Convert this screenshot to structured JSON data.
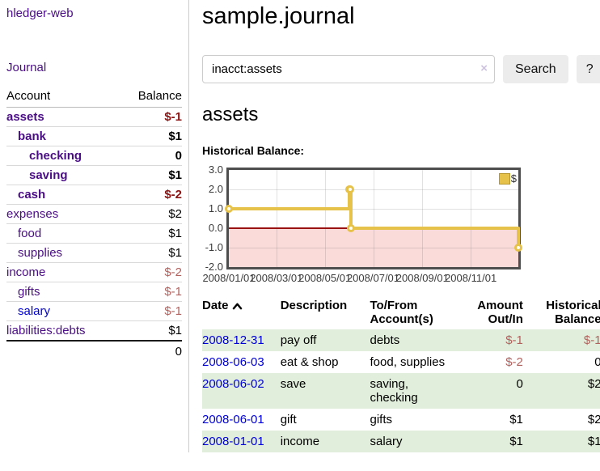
{
  "sidebar": {
    "brand": "hledger-web",
    "journal_link": "Journal",
    "accounts_table": {
      "headers": {
        "account": "Account",
        "balance": "Balance"
      },
      "rows": [
        {
          "name": "assets",
          "balance": "$-1",
          "depth": 0,
          "bold": true,
          "negative": true
        },
        {
          "name": "bank",
          "balance": "$1",
          "depth": 1,
          "bold": true,
          "negative": false
        },
        {
          "name": "checking",
          "balance": "0",
          "depth": 2,
          "bold": true,
          "negative": false
        },
        {
          "name": "saving",
          "balance": "$1",
          "depth": 2,
          "bold": true,
          "negative": false
        },
        {
          "name": "cash",
          "balance": "$-2",
          "depth": 1,
          "bold": true,
          "negative": true
        },
        {
          "name": "expenses",
          "balance": "$2",
          "depth": 0,
          "bold": false,
          "negative": false
        },
        {
          "name": "food",
          "balance": "$1",
          "depth": 1,
          "bold": false,
          "negative": false
        },
        {
          "name": "supplies",
          "balance": "$1",
          "depth": 1,
          "bold": false,
          "negative": false
        },
        {
          "name": "income",
          "balance": "$-2",
          "depth": 0,
          "bold": false,
          "negative": true
        },
        {
          "name": "gifts",
          "balance": "$-1",
          "depth": 1,
          "bold": false,
          "negative": true
        },
        {
          "name": "salary",
          "balance": "$-1",
          "depth": 1,
          "bold": false,
          "negative": true,
          "link_style": "blue"
        },
        {
          "name": "liabilities:debts",
          "balance": "$1",
          "depth": 0,
          "bold": false,
          "negative": false
        }
      ],
      "total": "0"
    }
  },
  "header": {
    "title": "sample.journal"
  },
  "search": {
    "value": "inacct:assets",
    "clear_icon": "×",
    "button_label": "Search",
    "help_label": "?"
  },
  "account_page": {
    "heading": "assets",
    "chart_title": "Historical Balance:"
  },
  "chart_data": {
    "type": "line",
    "line_style": "step-after",
    "title": "Historical Balance:",
    "series": [
      {
        "name": "$",
        "x": [
          "2008-01-01",
          "2008-06-01",
          "2008-06-02",
          "2008-06-03",
          "2008-12-31"
        ],
        "values": [
          1,
          2,
          2,
          0,
          -1
        ]
      }
    ],
    "x_domain": [
      "2008-01-01",
      "2008-12-31"
    ],
    "x_ticks": [
      {
        "date": "2008-01-01",
        "label": "2008/01/01"
      },
      {
        "date": "2008-03-01",
        "label": "2008/03/01"
      },
      {
        "date": "2008-05-01",
        "label": "2008/05/01"
      },
      {
        "date": "2008-07-01",
        "label": "2008/07/01"
      },
      {
        "date": "2008-09-01",
        "label": "2008/09/01"
      },
      {
        "date": "2008-11-01",
        "label": "2008/11/01"
      }
    ],
    "y_ticks": [
      {
        "value": 3,
        "label": "3.0"
      },
      {
        "value": 2,
        "label": "2.0"
      },
      {
        "value": 1,
        "label": "1.0"
      },
      {
        "value": 0,
        "label": "0.0"
      },
      {
        "value": -1,
        "label": "-1.0"
      },
      {
        "value": -2,
        "label": "-2.0"
      }
    ],
    "ylim": [
      -2,
      3
    ],
    "grid": true,
    "legend": {
      "label": "$",
      "position": "top-right"
    },
    "colors": {
      "line": "#e7c24a",
      "negative_region_fill": "#fbdada",
      "zero_line": "#991111"
    }
  },
  "register_table": {
    "headers": {
      "date": "Date",
      "description": "Description",
      "accounts": "To/From Account(s)",
      "amount": "Amount Out/In",
      "balance": "Historical Balance"
    },
    "rows": [
      {
        "date": "2008-12-31",
        "description": "pay off",
        "accounts": "debts",
        "amount": "$-1",
        "amount_negative": true,
        "balance": "$-1",
        "balance_negative": true,
        "shaded": true
      },
      {
        "date": "2008-06-03",
        "description": "eat & shop",
        "accounts": "food, supplies",
        "amount": "$-2",
        "amount_negative": true,
        "balance": "0",
        "balance_negative": false,
        "shaded": false
      },
      {
        "date": "2008-06-02",
        "description": "save",
        "accounts": "saving, checking",
        "amount": "0",
        "amount_negative": false,
        "balance": "$2",
        "balance_negative": false,
        "shaded": true
      },
      {
        "date": "2008-06-01",
        "description": "gift",
        "accounts": "gifts",
        "amount": "$1",
        "amount_negative": false,
        "balance": "$2",
        "balance_negative": false,
        "shaded": false
      },
      {
        "date": "2008-01-01",
        "description": "income",
        "accounts": "salary",
        "amount": "$1",
        "amount_negative": false,
        "balance": "$1",
        "balance_negative": false,
        "shaded": true
      }
    ]
  }
}
